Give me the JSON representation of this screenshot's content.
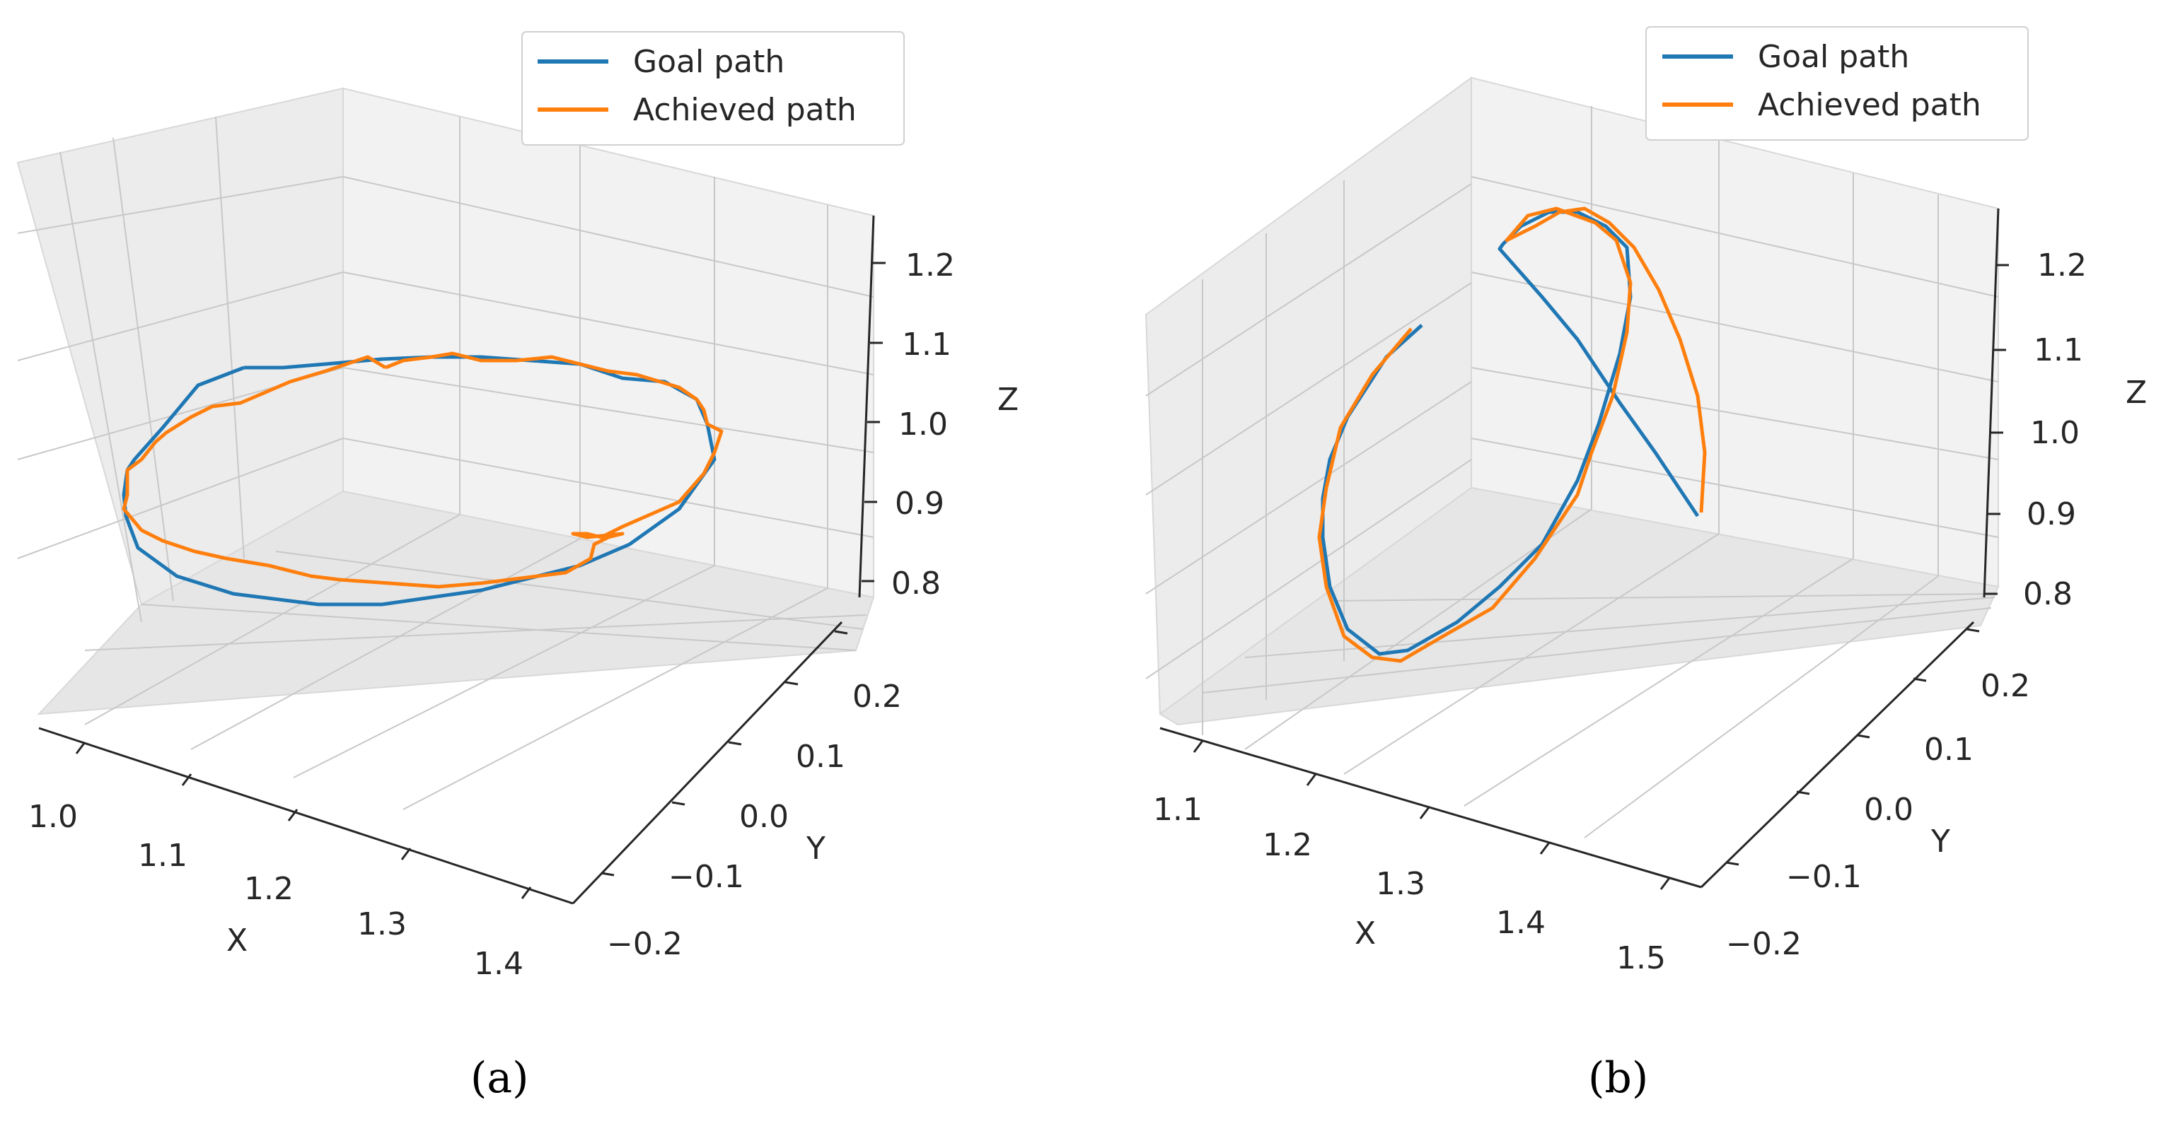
{
  "colors": {
    "goal": "#1f77b4",
    "achieved": "#ff7f0e",
    "pane": "#f2f2f2",
    "grid": "#c8c8c8"
  },
  "chart_data": [
    {
      "type": "line3d",
      "caption": "(a)",
      "xlabel": "X",
      "ylabel": "Y",
      "zlabel": "Z",
      "xticks": [
        "1.0",
        "1.1",
        "1.2",
        "1.3",
        "1.4"
      ],
      "yticks": [
        "−0.2",
        "−0.1",
        "0.0",
        "0.1",
        "0.2"
      ],
      "zticks": [
        "0.8",
        "0.9",
        "1.0",
        "1.1",
        "1.2"
      ],
      "legend": {
        "position": "top-right",
        "entries": [
          "Goal path",
          "Achieved path"
        ]
      },
      "series": [
        {
          "name": "Goal path",
          "description": "horizontal circle of radius ~0.15 centered at (1.2, 0.0) at z ~ 1.0"
        },
        {
          "name": "Achieved path",
          "description": "noisy tracking of the circle"
        }
      ]
    },
    {
      "type": "line3d",
      "caption": "(b)",
      "xlabel": "X",
      "ylabel": "Y",
      "zlabel": "Z",
      "xticks": [
        "1.1",
        "1.2",
        "1.3",
        "1.4",
        "1.5"
      ],
      "yticks": [
        "−0.2",
        "−0.1",
        "0.0",
        "0.1",
        "0.2"
      ],
      "zticks": [
        "0.8",
        "0.9",
        "1.0",
        "1.1",
        "1.2"
      ],
      "legend": {
        "position": "top-right",
        "entries": [
          "Goal path",
          "Achieved path"
        ]
      },
      "series": [
        {
          "name": "Goal path",
          "description": "tilted ellipse/figure loop"
        },
        {
          "name": "Achieved path",
          "description": "tracking of the tilted loop"
        }
      ]
    }
  ]
}
